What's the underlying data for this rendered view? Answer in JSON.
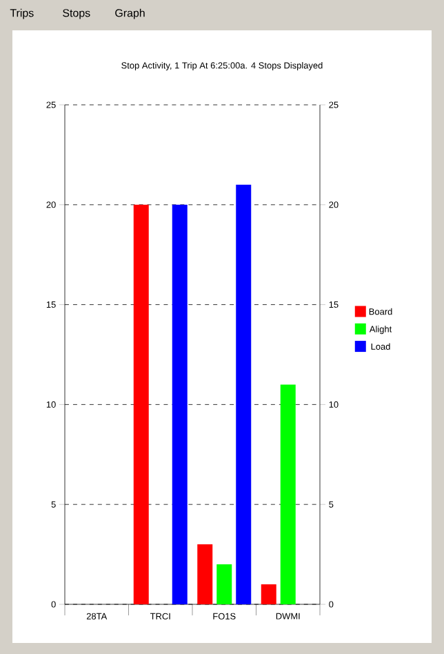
{
  "chart_data": {
    "type": "bar",
    "title": "Stop Activity, 1 Trip At  6:25:00a.  4 Stops Displayed",
    "annotations": [
      "Trips",
      "Stops",
      "Graph"
    ],
    "categories": [
      "28TA",
      "TRCI",
      "FO1S",
      "DWMI"
    ],
    "series": [
      {
        "name": "Board",
        "color": "#ff0000",
        "values": [
          0,
          20,
          3,
          1
        ]
      },
      {
        "name": "Alight",
        "color": "#00ff00",
        "values": [
          0,
          0,
          2,
          11
        ]
      },
      {
        "name": "Load",
        "color": "#0000ff",
        "values": [
          0,
          20,
          21,
          0
        ]
      }
    ],
    "ylim": [
      0,
      25
    ],
    "yticks": [
      0,
      5,
      10,
      15,
      20,
      25
    ],
    "y2lim": [
      0,
      25
    ],
    "y2ticks": [
      0,
      5,
      10,
      15,
      20,
      25
    ],
    "grid": "y",
    "legend": "right"
  }
}
